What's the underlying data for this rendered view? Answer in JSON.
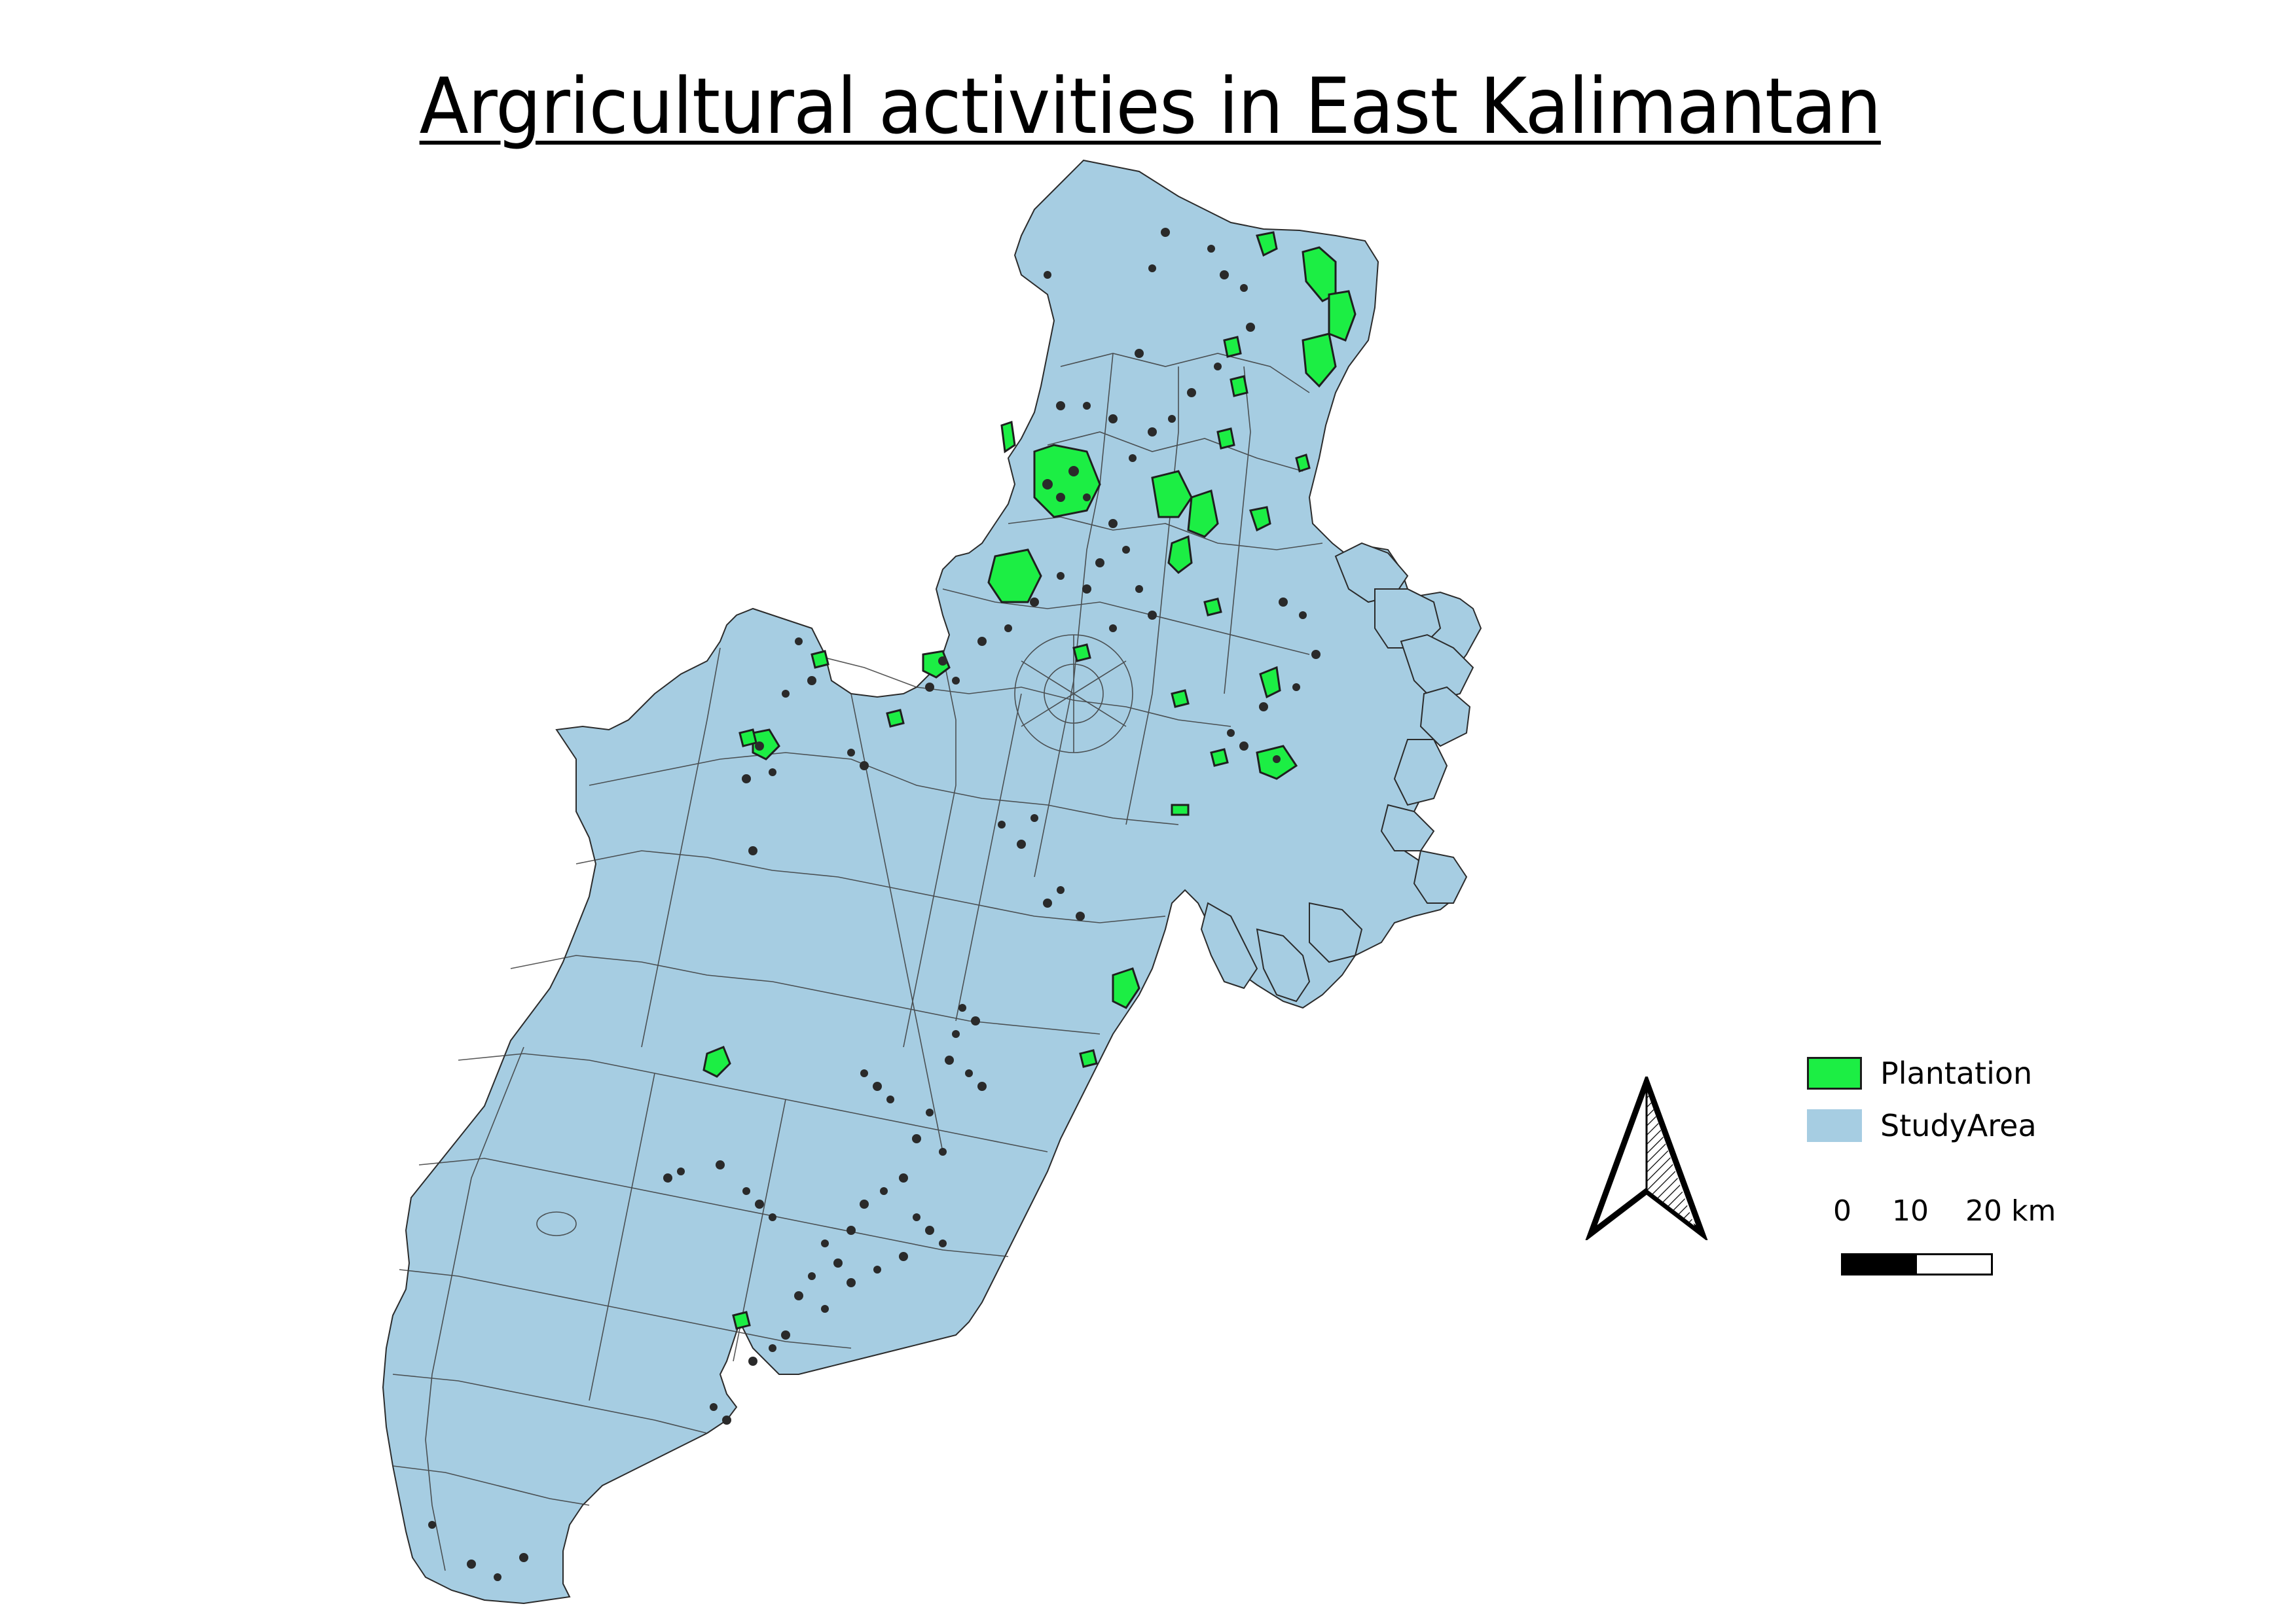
{
  "title": "Argricultural activities in East Kalimantan",
  "colors": {
    "study_area": "#a6cde2",
    "plantation": "#1cee44",
    "outline": "#2b2b2b"
  },
  "legend": [
    {
      "label": "Plantation",
      "color": "#1cee44"
    },
    {
      "label": "StudyArea",
      "color": "#a6cde2"
    }
  ],
  "scale_bar": {
    "ticks": [
      "0",
      "10",
      "20 km"
    ]
  },
  "north_arrow": {
    "icon": "north-arrow-icon"
  }
}
